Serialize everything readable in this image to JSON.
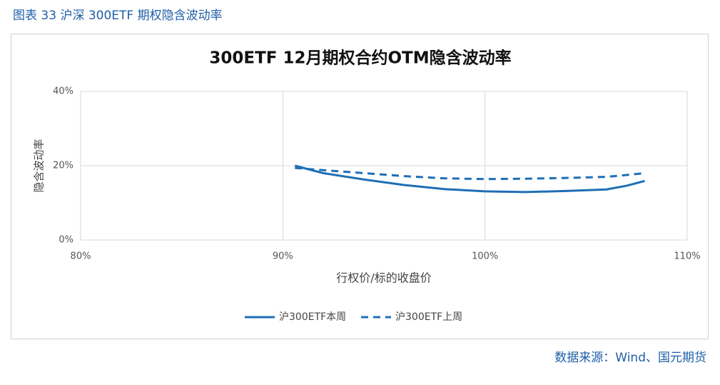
{
  "caption": "图表 33 沪深 300ETF 期权隐含波动率",
  "source": "数据来源：Wind、国元期货",
  "chart_data": {
    "type": "line",
    "title": "300ETF 12月期权合约OTM隐含波动率",
    "x_label": "行权价/标的收盘价",
    "y_label": "隐含波动率",
    "x": [
      90.6,
      92,
      94,
      96,
      98,
      100,
      102,
      104,
      106,
      107,
      107.9
    ],
    "series": [
      {
        "name": "沪300ETF本周",
        "color": "#1f6eb6",
        "dash": false,
        "values": [
          20.0,
          18.0,
          16.3,
          14.8,
          13.7,
          13.1,
          12.9,
          13.2,
          13.6,
          14.6,
          15.9
        ]
      },
      {
        "name": "沪300ETF上周",
        "color": "#1f6eb6",
        "dash": true,
        "values": [
          19.4,
          18.8,
          18.0,
          17.2,
          16.6,
          16.4,
          16.5,
          16.7,
          17.0,
          17.5,
          18.0
        ]
      }
    ],
    "xlim": [
      80,
      110
    ],
    "xticks": [
      {
        "value": 80,
        "label": "80%"
      },
      {
        "value": 90,
        "label": "90%"
      },
      {
        "value": 100,
        "label": "100%"
      },
      {
        "value": 110,
        "label": "110%"
      }
    ],
    "ylim": [
      0,
      40
    ],
    "yticks": [
      {
        "value": 0,
        "label": "0%"
      },
      {
        "value": 20,
        "label": "20%"
      },
      {
        "value": 40,
        "label": "40%"
      }
    ],
    "grid": true,
    "legend": "bottom"
  }
}
